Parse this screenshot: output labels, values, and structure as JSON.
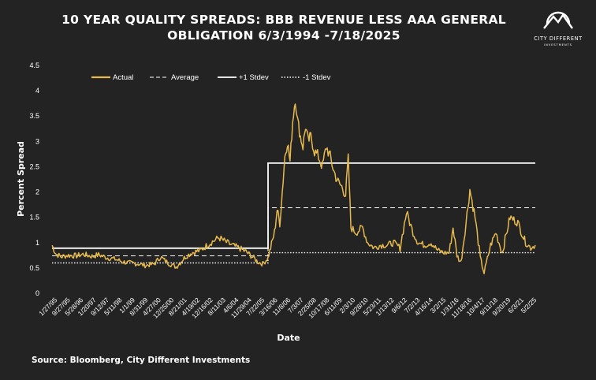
{
  "header": {
    "title_line1": "10 YEAR QUALITY SPREADS: BBB REVENUE LESS AAA GENERAL",
    "title_line2": "OBLIGATION 6/3/1994 -7/18/2025"
  },
  "logo": {
    "name": "CITY DIFFERENT",
    "sub": "INVESTMENTS",
    "icon": "mountain-sun-icon"
  },
  "footer": {
    "source": "Source: Bloomberg, City Different Investments"
  },
  "colors": {
    "background": "#232323",
    "actual": "#e6b94d",
    "lines": "#ffffff"
  },
  "chart_data": {
    "type": "line",
    "title": "10 YEAR QUALITY SPREADS: BBB REVENUE LESS AAA GENERAL OBLIGATION 6/3/1994 -7/18/2025",
    "xlabel": "Date",
    "ylabel": "Percent Spread",
    "ylim": [
      0,
      4.5
    ],
    "yticks": [
      "0",
      "0.5",
      "1",
      "1.5",
      "2",
      "2.5",
      "3",
      "3.5",
      "4",
      "4.5"
    ],
    "xlim": [
      "1994-06-03",
      "2025-07-18"
    ],
    "xticks": [
      "1/27/95",
      "9/27/95",
      "5/28/96",
      "1/20/97",
      "9/12/97",
      "5/11/98",
      "1/1/99",
      "8/31/99",
      "4/27/00",
      "12/25/00",
      "8/21/01",
      "4/19/02",
      "12/16/02",
      "8/11/03",
      "4/6/04",
      "11/29/04",
      "7/22/05",
      "3/16/06",
      "11/8/06",
      "7/3/07",
      "2/25/08",
      "10/17/08",
      "6/11/09",
      "2/3/10",
      "9/28/10",
      "5/23/11",
      "1/13/12",
      "9/6/12",
      "7/2/13",
      "4/16/14",
      "3/2/15",
      "1/31/16",
      "11/18/16",
      "10/4/17",
      "9/11/18",
      "9/20/19",
      "6/3/21",
      "5/2/25"
    ],
    "grid": false,
    "legend_position": "top-left",
    "legend": [
      "Actual",
      "Average",
      "+1 Stdev",
      "-1 Stdev"
    ],
    "series": [
      {
        "name": "Actual",
        "x": [
          "1994-06-03",
          "1994-09-01",
          "1995-01-01",
          "1995-06-01",
          "1996-01-01",
          "1996-06-01",
          "1997-01-01",
          "1997-06-01",
          "1998-01-01",
          "1998-06-01",
          "1999-01-01",
          "1999-06-01",
          "2000-01-01",
          "2000-06-01",
          "2001-01-01",
          "2001-06-01",
          "2001-09-01",
          "2002-01-01",
          "2002-06-01",
          "2003-01-01",
          "2003-06-01",
          "2004-01-01",
          "2004-06-01",
          "2004-10-01",
          "2005-03-01",
          "2005-08-01",
          "2006-01-01",
          "2006-06-01",
          "2006-12-01",
          "2007-06-01",
          "2007-09-01",
          "2008-01-01",
          "2008-05-01",
          "2008-07-01",
          "2008-10-01",
          "2008-12-01",
          "2009-02-01",
          "2009-04-01",
          "2009-06-01",
          "2009-08-01",
          "2009-10-01",
          "2009-12-01",
          "2010-02-01",
          "2010-04-01",
          "2010-06-01",
          "2010-08-01",
          "2010-10-01",
          "2010-12-01",
          "2011-02-01",
          "2011-05-01",
          "2011-08-01",
          "2011-11-01",
          "2012-02-01",
          "2012-05-01",
          "2012-08-01",
          "2012-11-01",
          "2013-02-01",
          "2013-05-01",
          "2013-07-01",
          "2013-09-01",
          "2014-01-01",
          "2014-06-01",
          "2014-10-01",
          "2015-03-01",
          "2015-08-01",
          "2016-01-01",
          "2016-06-01",
          "2016-11-01",
          "2017-04-01",
          "2017-09-01",
          "2018-01-01",
          "2018-06-01",
          "2018-11-01",
          "2019-04-01",
          "2019-09-01",
          "2020-01-01",
          "2020-04-01",
          "2020-07-01",
          "2020-10-01",
          "2021-02-01",
          "2021-05-01",
          "2021-09-01",
          "2022-01-01",
          "2022-04-01",
          "2022-09-01",
          "2023-01-01",
          "2023-06-01",
          "2023-12-01",
          "2024-06-01",
          "2024-12-01",
          "2025-04-01",
          "2025-07-18"
        ],
        "y": [
          0.95,
          0.78,
          0.72,
          0.75,
          0.74,
          0.77,
          0.73,
          0.76,
          0.7,
          0.68,
          0.62,
          0.6,
          0.58,
          0.55,
          0.58,
          0.72,
          0.65,
          0.58,
          0.52,
          0.72,
          0.8,
          0.85,
          0.95,
          1.02,
          1.1,
          1.02,
          0.95,
          0.9,
          0.82,
          0.7,
          0.62,
          0.58,
          0.7,
          0.9,
          1.2,
          1.65,
          1.4,
          2.0,
          2.7,
          3.0,
          2.6,
          3.4,
          3.85,
          3.4,
          3.1,
          2.9,
          3.3,
          3.0,
          3.1,
          2.8,
          2.7,
          2.5,
          2.9,
          2.7,
          2.4,
          2.2,
          2.1,
          1.95,
          2.65,
          1.3,
          1.2,
          1.3,
          1.0,
          0.9,
          0.95,
          0.95,
          1.0,
          0.9,
          1.6,
          1.2,
          1.0,
          0.95,
          1.0,
          0.85,
          0.8,
          0.8,
          1.3,
          0.75,
          0.6,
          1.4,
          2.05,
          1.5,
          0.7,
          0.4,
          0.95,
          1.2,
          0.8,
          1.5,
          1.4,
          1.0,
          0.9,
          0.95
        ]
      },
      {
        "name": "Average",
        "segments": [
          {
            "x": [
              "1994-06-03",
              "2008-05-01"
            ],
            "y": [
              0.74,
              0.74
            ]
          },
          {
            "x": [
              "2008-05-01",
              "2025-07-18"
            ],
            "y": [
              1.69,
              1.69
            ]
          }
        ]
      },
      {
        "name": "+1 Stdev",
        "segments": [
          {
            "x": [
              "1994-06-03",
              "2008-05-01"
            ],
            "y": [
              0.89,
              0.89
            ]
          },
          {
            "x": [
              "2008-05-01",
              "2025-07-18"
            ],
            "y": [
              2.57,
              2.57
            ]
          }
        ]
      },
      {
        "name": "-1 Stdev",
        "segments": [
          {
            "x": [
              "1994-06-03",
              "2008-05-01"
            ],
            "y": [
              0.6,
              0.6
            ]
          },
          {
            "x": [
              "2008-05-01",
              "2025-07-18"
            ],
            "y": [
              0.8,
              0.8
            ]
          }
        ]
      }
    ]
  }
}
